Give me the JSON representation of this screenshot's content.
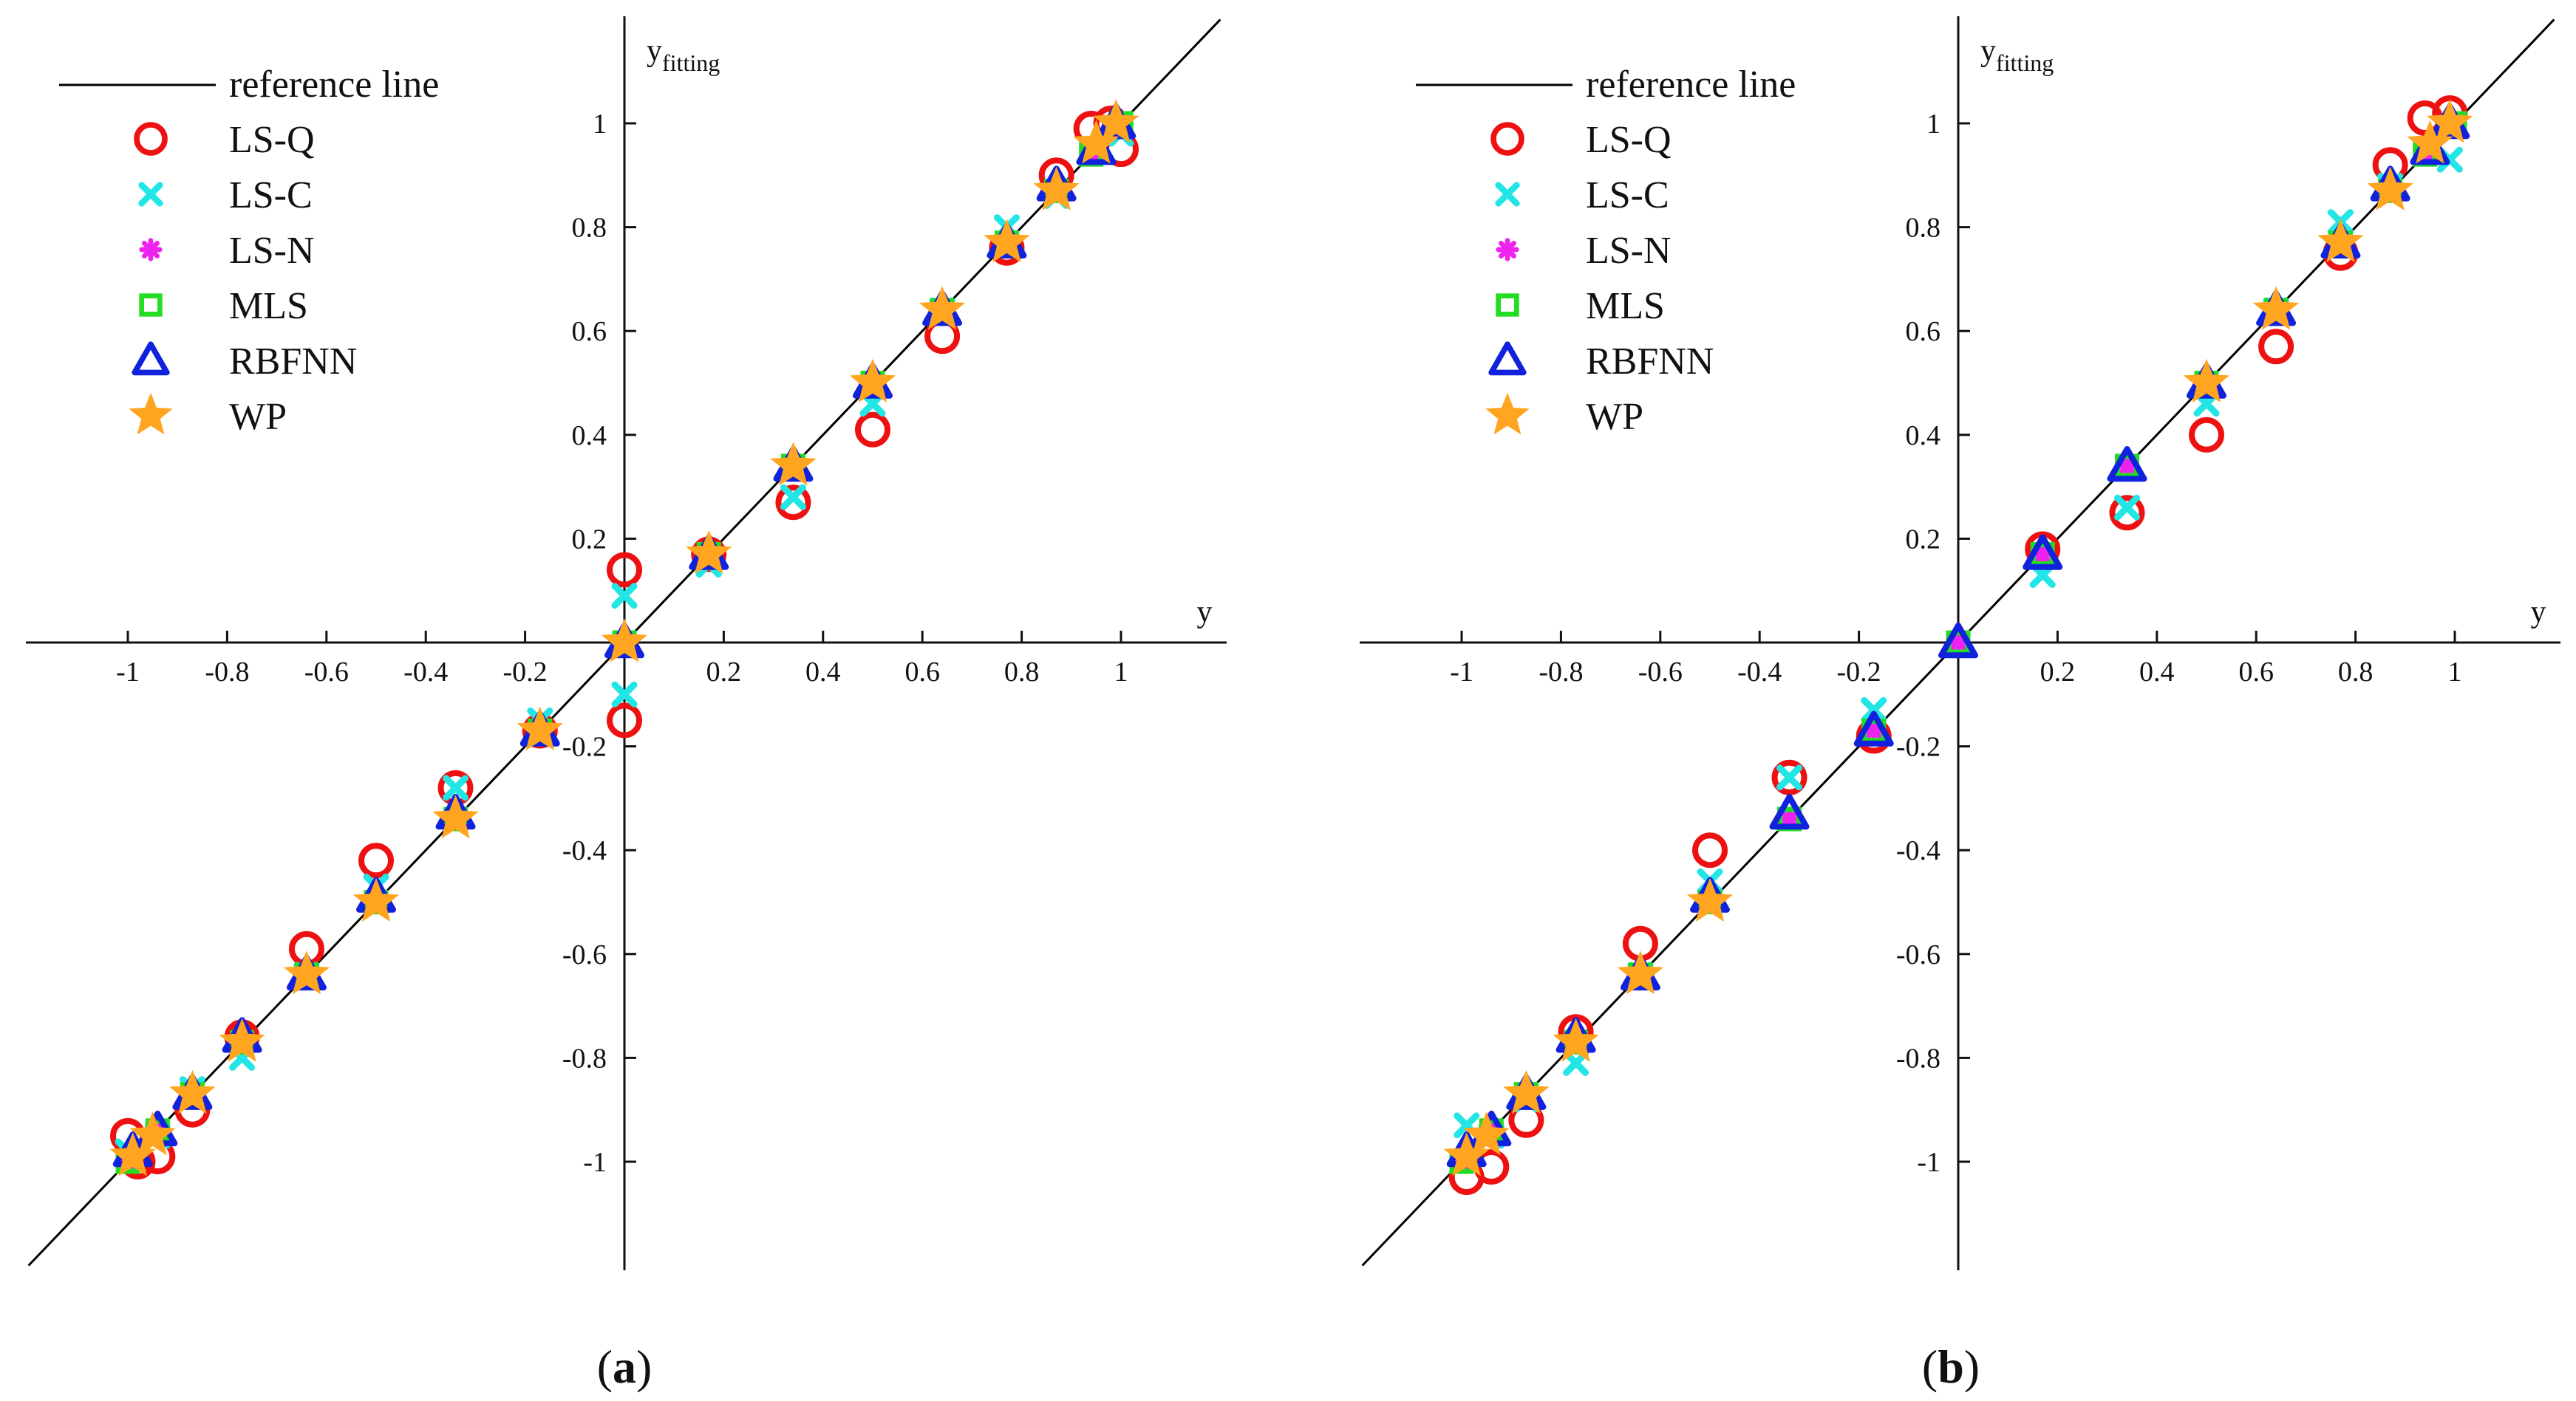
{
  "figure": {
    "legend_labels": [
      "reference line",
      "LS-Q",
      "LS-C",
      "LS-N",
      "MLS",
      "RBFNN",
      "WP"
    ],
    "x_axis_label": "y",
    "y_axis_label_main": "y",
    "y_axis_label_sub": "fitting"
  },
  "chart_data": [
    {
      "type": "scatter",
      "panel": "a",
      "caption_open": "(",
      "caption_letter": "a",
      "caption_close": ")",
      "xlabel": "y",
      "ylabel": "y_fitting",
      "xlim": [
        -1.2,
        1.2
      ],
      "ylim": [
        -1.2,
        1.2
      ],
      "x_ticks": [
        -1,
        -0.8,
        -0.6,
        -0.4,
        -0.2,
        0.2,
        0.4,
        0.6,
        0.8,
        1
      ],
      "x_tick_labels": [
        "-1",
        "-0.8",
        "-0.6",
        "-0.4",
        "-0.2",
        "0.2",
        "0.4",
        "0.6",
        "0.8",
        "1"
      ],
      "y_ticks": [
        -1,
        -0.8,
        -0.6,
        -0.4,
        -0.2,
        0.2,
        0.4,
        0.6,
        0.8,
        1
      ],
      "y_tick_labels": [
        "-1",
        "-0.8",
        "-0.6",
        "-0.4",
        "-0.2",
        "0.2",
        "0.4",
        "0.6",
        "0.8",
        "1"
      ],
      "reference_line": [
        [
          -1.2,
          -1.2
        ],
        [
          1.2,
          1.2
        ]
      ],
      "series": [
        {
          "name": "LS-Q",
          "marker": "circle",
          "color": "#ee1111",
          "x": [
            -0.98,
            -1.0,
            -0.94,
            -0.87,
            -0.77,
            -0.64,
            -0.5,
            -0.34,
            -0.17,
            0.0,
            0.0,
            0.17,
            0.34,
            0.5,
            0.64,
            0.77,
            0.87,
            0.94,
            0.98,
            1.0
          ],
          "y": [
            -1.0,
            -0.95,
            -0.99,
            -0.9,
            -0.76,
            -0.59,
            -0.42,
            -0.28,
            -0.17,
            0.14,
            -0.15,
            0.17,
            0.27,
            0.41,
            0.59,
            0.76,
            0.9,
            0.99,
            1.0,
            0.95
          ]
        },
        {
          "name": "LS-C",
          "marker": "x",
          "color": "#22e5e5",
          "x": [
            -1.0,
            -0.94,
            -0.87,
            -0.77,
            -0.64,
            -0.5,
            -0.34,
            -0.17,
            0.0,
            0.0,
            0.17,
            0.34,
            0.5,
            0.64,
            0.77,
            0.87,
            0.94,
            1.0
          ],
          "y": [
            -0.98,
            -0.95,
            -0.86,
            -0.8,
            -0.64,
            -0.47,
            -0.28,
            -0.15,
            0.09,
            -0.1,
            0.15,
            0.28,
            0.46,
            0.64,
            0.8,
            0.86,
            0.95,
            0.98
          ]
        },
        {
          "name": "LS-N",
          "marker": "asterisk",
          "color": "#ee22ee",
          "x": [
            -1.0,
            -0.94,
            -0.87,
            -0.77,
            -0.64,
            -0.5,
            -0.34,
            -0.17,
            0.0,
            0.17,
            0.34,
            0.5,
            0.64,
            0.77,
            0.87,
            0.94,
            1.0
          ],
          "y": [
            -1.0,
            -0.94,
            -0.87,
            -0.77,
            -0.64,
            -0.5,
            -0.34,
            -0.17,
            0.0,
            0.17,
            0.34,
            0.5,
            0.64,
            0.77,
            0.87,
            0.94,
            1.0
          ]
        },
        {
          "name": "MLS",
          "marker": "square",
          "color": "#22dd22",
          "x": [
            -1.0,
            -0.94,
            -0.87,
            -0.77,
            -0.64,
            -0.5,
            -0.34,
            -0.17,
            0.0,
            0.17,
            0.34,
            0.5,
            0.64,
            0.77,
            0.87,
            0.94,
            1.0
          ],
          "y": [
            -1.0,
            -0.94,
            -0.87,
            -0.77,
            -0.64,
            -0.5,
            -0.34,
            -0.17,
            0.0,
            0.17,
            0.34,
            0.5,
            0.64,
            0.77,
            0.87,
            0.94,
            1.0
          ]
        },
        {
          "name": "RBFNN",
          "marker": "triangle",
          "color": "#1122dd",
          "x": [
            -0.99,
            -0.94,
            -0.87,
            -0.77,
            -0.64,
            -0.5,
            -0.34,
            -0.17,
            0.0,
            0.17,
            0.34,
            0.5,
            0.64,
            0.77,
            0.87,
            0.95,
            0.99
          ],
          "y": [
            -0.98,
            -0.94,
            -0.87,
            -0.76,
            -0.64,
            -0.49,
            -0.33,
            -0.17,
            0.0,
            0.17,
            0.34,
            0.5,
            0.64,
            0.77,
            0.88,
            0.95,
            1.0
          ]
        },
        {
          "name": "WP",
          "marker": "star",
          "color": "#ffa520",
          "x": [
            -0.99,
            -0.95,
            -0.87,
            -0.77,
            -0.64,
            -0.5,
            -0.34,
            -0.17,
            0.0,
            0.17,
            0.34,
            0.5,
            0.64,
            0.77,
            0.87,
            0.95,
            0.99
          ],
          "y": [
            -0.99,
            -0.95,
            -0.87,
            -0.77,
            -0.64,
            -0.5,
            -0.34,
            -0.17,
            0.0,
            0.17,
            0.34,
            0.5,
            0.64,
            0.77,
            0.87,
            0.96,
            1.0
          ]
        }
      ]
    },
    {
      "type": "scatter",
      "panel": "b",
      "caption_open": "(",
      "caption_letter": "b",
      "caption_close": ")",
      "xlabel": "y",
      "ylabel": "y_fitting",
      "xlim": [
        -1.2,
        1.2
      ],
      "ylim": [
        -1.2,
        1.2
      ],
      "x_ticks": [
        -1,
        -0.8,
        -0.6,
        -0.4,
        -0.2,
        0.2,
        0.4,
        0.6,
        0.8,
        1
      ],
      "x_tick_labels": [
        "-1",
        "-0.8",
        "-0.6",
        "-0.4",
        "-0.2",
        "0.2",
        "0.4",
        "0.6",
        "0.8",
        "1"
      ],
      "y_ticks": [
        -1,
        -0.8,
        -0.6,
        -0.4,
        -0.2,
        0.2,
        0.4,
        0.6,
        0.8,
        1
      ],
      "y_tick_labels": [
        "-1",
        "-0.8",
        "-0.6",
        "-0.4",
        "-0.2",
        "0.2",
        "0.4",
        "0.6",
        "0.8",
        "1"
      ],
      "reference_line": [
        [
          -1.2,
          -1.2
        ],
        [
          1.2,
          1.2
        ]
      ],
      "series": [
        {
          "name": "LS-Q",
          "marker": "circle",
          "color": "#ee1111",
          "x": [
            -0.99,
            -0.94,
            -0.87,
            -0.77,
            -0.64,
            -0.5,
            -0.34,
            -0.17,
            0.17,
            0.34,
            0.5,
            0.64,
            0.77,
            0.87,
            0.94,
            0.99
          ],
          "y": [
            -1.03,
            -1.01,
            -0.92,
            -0.75,
            -0.58,
            -0.4,
            -0.26,
            -0.18,
            0.18,
            0.25,
            0.4,
            0.57,
            0.75,
            0.92,
            1.01,
            1.02
          ]
        },
        {
          "name": "LS-C",
          "marker": "x",
          "color": "#22e5e5",
          "x": [
            -0.99,
            -0.94,
            -0.87,
            -0.77,
            -0.64,
            -0.5,
            -0.34,
            -0.17,
            0.17,
            0.34,
            0.5,
            0.64,
            0.77,
            0.87,
            0.94,
            0.99
          ],
          "y": [
            -0.93,
            -0.95,
            -0.88,
            -0.81,
            -0.64,
            -0.46,
            -0.26,
            -0.13,
            0.13,
            0.26,
            0.46,
            0.64,
            0.81,
            0.88,
            0.95,
            0.93
          ]
        },
        {
          "name": "LS-N",
          "marker": "asterisk",
          "color": "#ee22ee",
          "x": [
            -1.0,
            -0.94,
            -0.87,
            -0.77,
            -0.64,
            -0.5,
            -0.34,
            -0.17,
            0.0,
            0.17,
            0.34,
            0.5,
            0.64,
            0.77,
            0.87,
            0.94,
            1.0
          ],
          "y": [
            -1.0,
            -0.94,
            -0.87,
            -0.77,
            -0.64,
            -0.5,
            -0.34,
            -0.17,
            0.0,
            0.17,
            0.34,
            0.5,
            0.64,
            0.77,
            0.87,
            0.94,
            1.0
          ]
        },
        {
          "name": "MLS",
          "marker": "square",
          "color": "#22dd22",
          "x": [
            -1.0,
            -0.94,
            -0.87,
            -0.77,
            -0.64,
            -0.5,
            -0.34,
            -0.17,
            0.0,
            0.17,
            0.34,
            0.5,
            0.64,
            0.77,
            0.87,
            0.94,
            1.0
          ],
          "y": [
            -1.0,
            -0.94,
            -0.87,
            -0.77,
            -0.64,
            -0.5,
            -0.34,
            -0.17,
            0.0,
            0.17,
            0.34,
            0.5,
            0.64,
            0.77,
            0.87,
            0.94,
            1.0
          ]
        },
        {
          "name": "RBFNN",
          "marker": "triangle",
          "color": "#1122dd",
          "x": [
            -0.99,
            -0.94,
            -0.87,
            -0.77,
            -0.64,
            -0.5,
            -0.34,
            -0.17,
            0.0,
            0.17,
            0.34,
            0.5,
            0.64,
            0.77,
            0.87,
            0.95,
            0.99
          ],
          "y": [
            -0.98,
            -0.94,
            -0.87,
            -0.76,
            -0.64,
            -0.49,
            -0.33,
            -0.17,
            0.0,
            0.17,
            0.34,
            0.5,
            0.64,
            0.77,
            0.88,
            0.95,
            1.0
          ]
        },
        {
          "name": "WP",
          "marker": "star",
          "color": "#ffa520",
          "x": [
            -0.99,
            -0.95,
            -0.87,
            -0.77,
            -0.64,
            -0.5,
            0.5,
            0.64,
            0.77,
            0.87,
            0.95,
            0.99
          ],
          "y": [
            -0.99,
            -0.95,
            -0.87,
            -0.77,
            -0.64,
            -0.5,
            0.5,
            0.64,
            0.77,
            0.87,
            0.96,
            1.0
          ]
        }
      ]
    }
  ]
}
